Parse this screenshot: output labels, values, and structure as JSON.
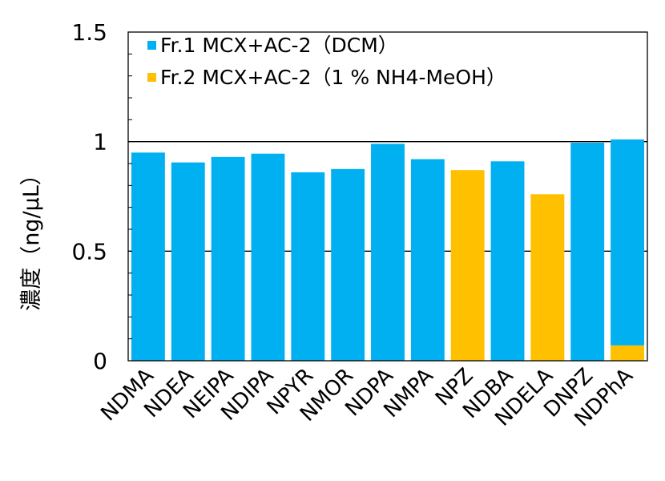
{
  "chart_data": {
    "type": "bar",
    "stacked": true,
    "ylabel": "濃度（ng/μL）",
    "ylim": [
      0,
      1.5
    ],
    "yticks": [
      {
        "value": 0,
        "label": "0"
      },
      {
        "value": 0.5,
        "label": "0.5"
      },
      {
        "value": 1,
        "label": "1"
      },
      {
        "value": 1.5,
        "label": "1.5"
      }
    ],
    "categories": [
      "NDMA",
      "NDEA",
      "NEIPA",
      "NDIPA",
      "NPYR",
      "NMOR",
      "NDPA",
      "NMPA",
      "NPZ",
      "NDBA",
      "NDELA",
      "DNPZ",
      "NDPhA"
    ],
    "series": [
      {
        "name": "Fr.2 MCX+AC-2（1 % NH4-MeOH）",
        "color": "#FFC000",
        "values": [
          0,
          0,
          0,
          0,
          0,
          0,
          0,
          0,
          0.87,
          0,
          0.76,
          0,
          0.07
        ]
      },
      {
        "name": "Fr.1 MCX+AC-2（DCM）",
        "color": "#00B0F0",
        "values": [
          0.95,
          0.905,
          0.93,
          0.945,
          0.86,
          0.875,
          0.99,
          0.92,
          0,
          0.91,
          0,
          0.995,
          0.94
        ]
      }
    ],
    "legend_order": [
      1,
      0
    ],
    "legend_position": "top-left",
    "gridlines": [
      0.5,
      1
    ]
  }
}
